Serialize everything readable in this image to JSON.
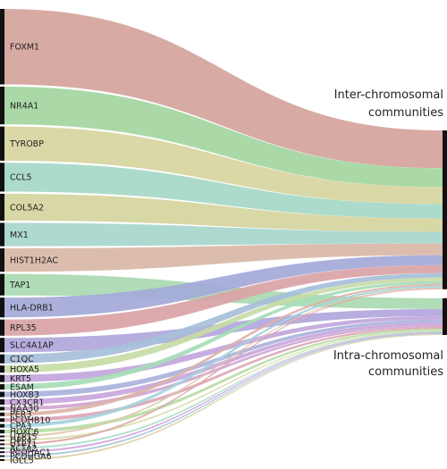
{
  "chart_data": {
    "type": "sankey",
    "title": "",
    "targets": [
      {
        "id": "inter",
        "lines": [
          "Inter-chromosomal",
          "communities"
        ]
      },
      {
        "id": "intra",
        "lines": [
          "Intra-chromosomal",
          "communities"
        ]
      }
    ],
    "sources": [
      {
        "name": "FOXM1",
        "value": 42,
        "target": "inter",
        "color": "#d4a39b"
      },
      {
        "name": "NR4A1",
        "value": 21,
        "target": "inter",
        "color": "#a3d6a0"
      },
      {
        "name": "TYROBP",
        "value": 19,
        "target": "inter",
        "color": "#d7d5a0"
      },
      {
        "name": "CCL5",
        "value": 16,
        "target": "inter",
        "color": "#a6d8c7"
      },
      {
        "name": "COL5A2",
        "value": 15,
        "target": "inter",
        "color": "#d5d49e"
      },
      {
        "name": "MX1",
        "value": 13,
        "target": "inter",
        "color": "#a6d6cd"
      },
      {
        "name": "HIST1H2AC",
        "value": 13,
        "target": "inter",
        "color": "#d9b7a6"
      },
      {
        "name": "TAP1",
        "value": 12,
        "target": "intra",
        "color": "#a9d9b2"
      },
      {
        "name": "HLA-DRB1",
        "value": 11,
        "target": "inter",
        "color": "#a4a9d8"
      },
      {
        "name": "RPL35",
        "value": 9,
        "target": "inter",
        "color": "#d9a3a6"
      },
      {
        "name": "SLC4A1AP",
        "value": 8,
        "target": "intra",
        "color": "#b2a6dc"
      },
      {
        "name": "C1QC",
        "value": 5,
        "target": "inter",
        "color": "#a6bfd9"
      },
      {
        "name": "HOXA5",
        "value": 4,
        "target": "inter",
        "color": "#c7dba6"
      },
      {
        "name": "KRT5",
        "value": 4,
        "target": "intra",
        "color": "#c2a6dc"
      },
      {
        "name": "ESAM",
        "value": 3,
        "target": "inter",
        "color": "#a6dcb7"
      },
      {
        "name": "HOXB3",
        "value": 3,
        "target": "intra",
        "color": "#aab2dc"
      },
      {
        "name": "CX3CR1",
        "value": 3,
        "target": "intra",
        "color": "#c9a6dc"
      },
      {
        "name": "NAA30",
        "value": 2,
        "target": "intra",
        "color": "#d0a6d0"
      },
      {
        "name": "PER3",
        "value": 2,
        "target": "inter",
        "color": "#dcb3a6"
      },
      {
        "name": "PCDHB10",
        "value": 2,
        "target": "intra",
        "color": "#dca6b6"
      },
      {
        "name": "CPA3",
        "value": 2,
        "target": "inter",
        "color": "#a6d2dc"
      },
      {
        "name": "HOXC6",
        "value": 2,
        "target": "intra",
        "color": "#b9dca6"
      },
      {
        "name": "UTP15",
        "value": 1,
        "target": "inter",
        "color": "#dcc9a6"
      },
      {
        "name": "DPP4",
        "value": 1,
        "target": "intra",
        "color": "#d6dca6"
      },
      {
        "name": "UTP11",
        "value": 1,
        "target": "inter",
        "color": "#dca6a6"
      },
      {
        "name": "ACTA2",
        "value": 1,
        "target": "intra",
        "color": "#a6dcc4"
      },
      {
        "name": "PCDHAC1",
        "value": 1,
        "target": "intra",
        "color": "#d1a6dc"
      },
      {
        "name": "PCDHGA6",
        "value": 1,
        "target": "intra",
        "color": "#a6c6dc"
      },
      {
        "name": "IGLL5",
        "value": 1,
        "target": "intra",
        "color": "#dcd0a6"
      }
    ],
    "colors": {
      "node_bar": "#111111",
      "label": "#222222"
    }
  }
}
